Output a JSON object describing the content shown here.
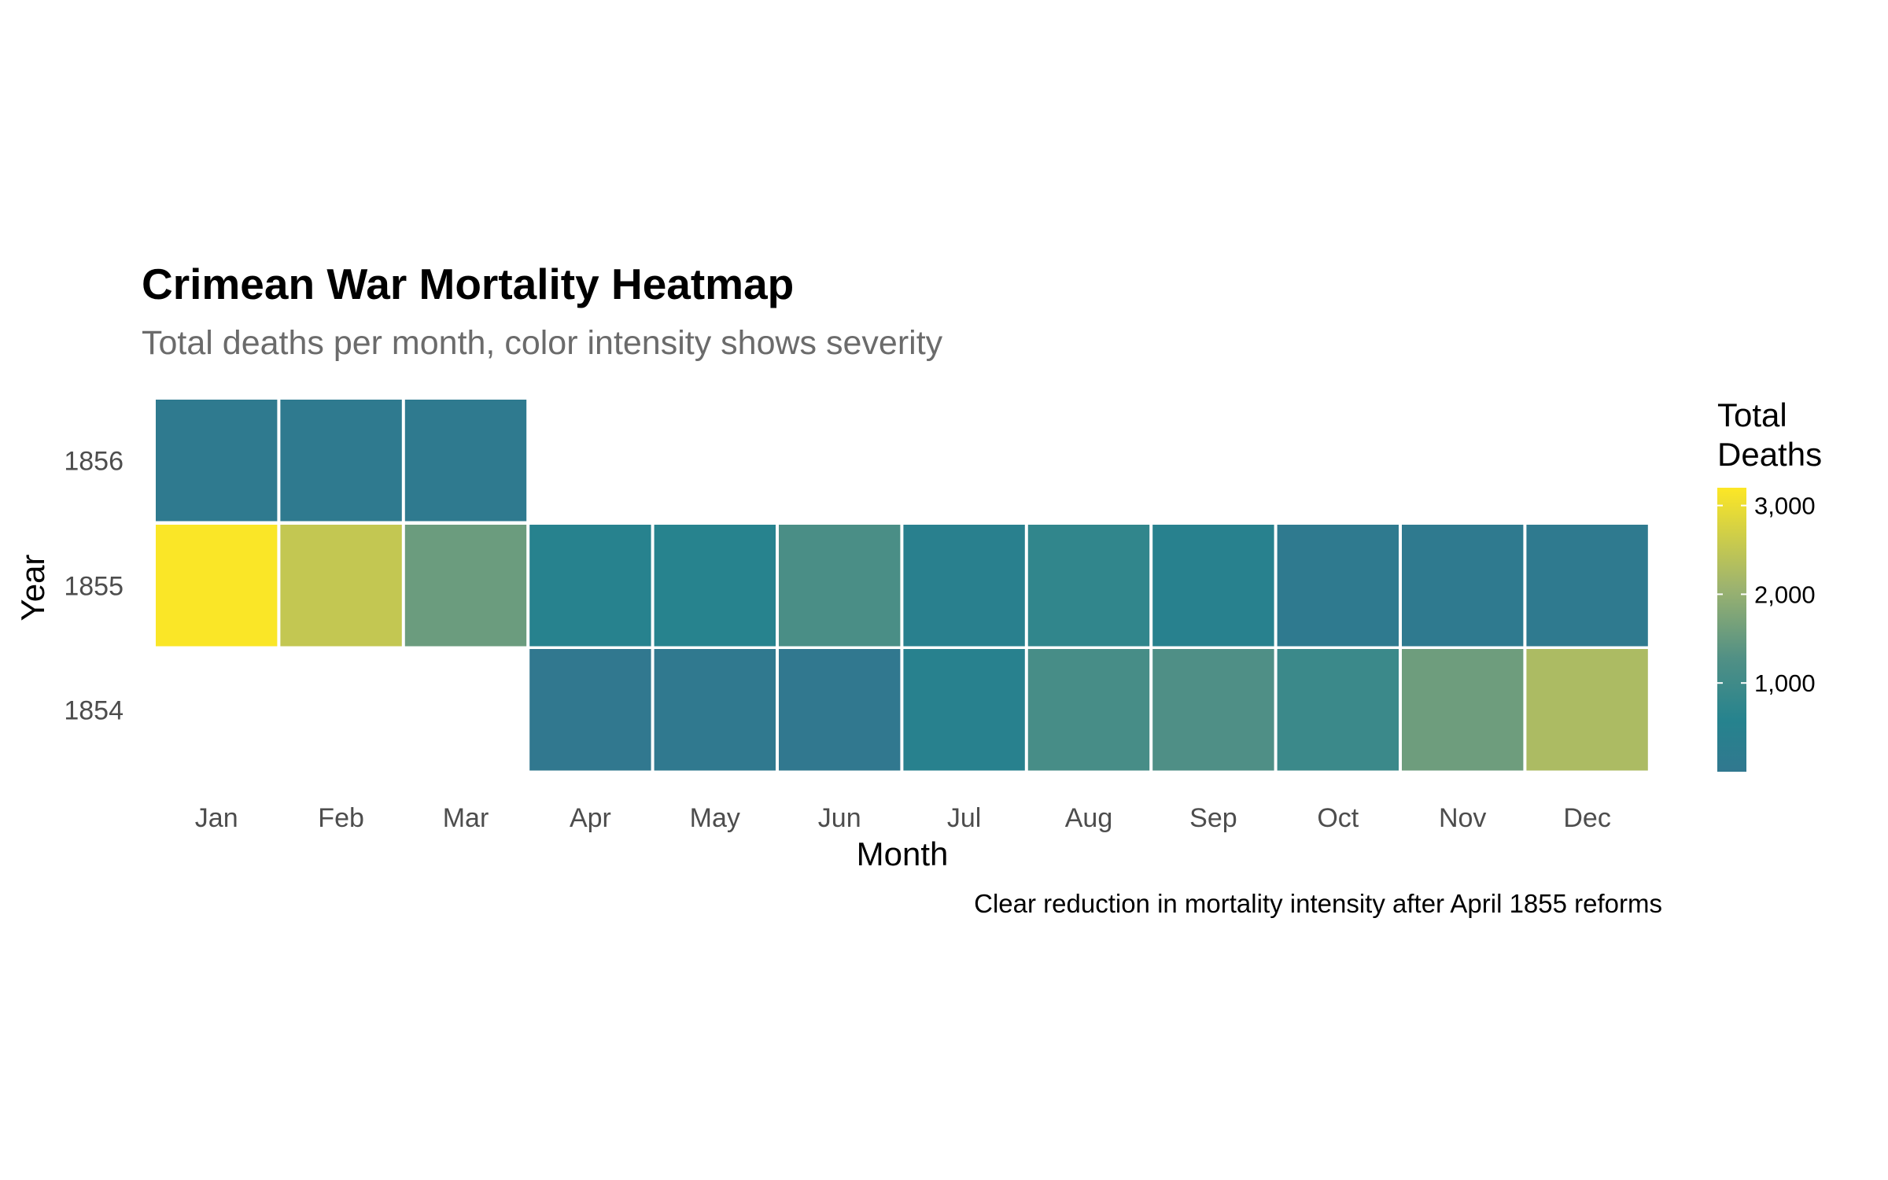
{
  "chart_data": {
    "type": "heatmap",
    "title": "Crimean War Mortality Heatmap",
    "subtitle": "Total deaths per month, color intensity shows severity",
    "xlabel": "Month",
    "ylabel": "Year",
    "caption": "Clear reduction in mortality intensity after April 1855 reforms",
    "months": [
      "Jan",
      "Feb",
      "Mar",
      "Apr",
      "May",
      "Jun",
      "Jul",
      "Aug",
      "Sep",
      "Oct",
      "Nov",
      "Dec"
    ],
    "years": [
      "1856",
      "1855",
      "1854"
    ],
    "values": {
      "1856": [
        90,
        90,
        90,
        null,
        null,
        null,
        null,
        null,
        null,
        null,
        null,
        null
      ],
      "1855": [
        3170,
        2520,
        1550,
        520,
        590,
        1170,
        440,
        760,
        460,
        120,
        110,
        110
      ],
      "1854": [
        null,
        null,
        null,
        10,
        50,
        20,
        470,
        1120,
        1240,
        920,
        1580,
        2260
      ]
    },
    "legend": {
      "title": [
        "Total",
        "Deaths"
      ],
      "ticks": [
        1000,
        2000,
        3000
      ],
      "tick_labels": [
        "1,000",
        "2,000",
        "3,000"
      ],
      "range": [
        0,
        3200
      ],
      "placement": "right"
    },
    "colors": {
      "low": "#31788f",
      "mid_low": "#26838e",
      "mid": "#519085",
      "mid_high": "#9db36f",
      "high": "#fde725",
      "tile_border": "#ffffff"
    }
  }
}
